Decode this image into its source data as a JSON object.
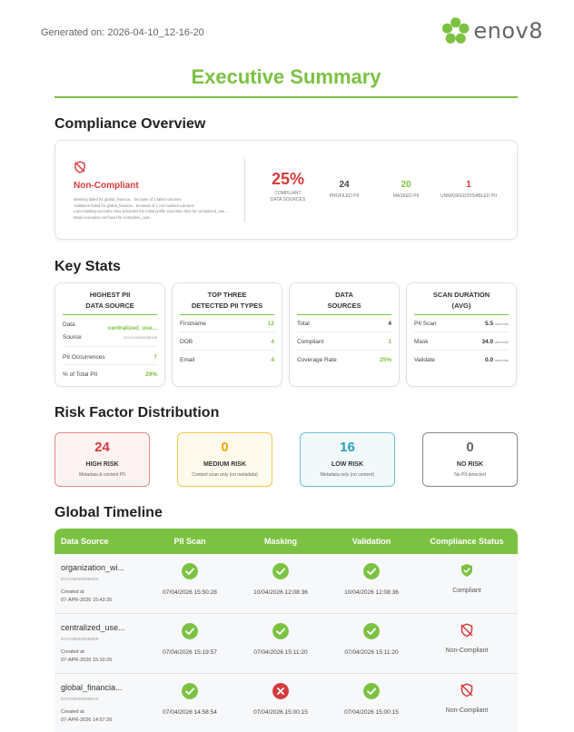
{
  "header": {
    "generated": "Generated on: 2026-04-10_12-16-20",
    "logo_text": "enov8",
    "logo_icon": "flower-logo-icon",
    "title": "Executive Summary"
  },
  "colors": {
    "brand_green": "#7cc242",
    "red": "#d63b3b",
    "amber": "#f2a900",
    "teal": "#2a9fb6",
    "grey": "#666666"
  },
  "compliance_overview": {
    "heading": "Compliance Overview",
    "status": "Non-Compliant",
    "status_icon": "shield-off-icon",
    "notes": [
      "Masking failed for global_financia... because of 1 failed columns",
      "Validation failed for global_financia... because of 1 not masked columns",
      "Last masking execution time precedes the initial profile execution time for centralized_use...",
      "Mask execution not found for enterprise_cust..."
    ],
    "compliant_pct": "25%",
    "compliant_pct_label_1": "COMPLIANT",
    "compliant_pct_label_2": "DATA SOURCES",
    "profiled_value": "24",
    "profiled_label": "PROFILED PII",
    "masked_value": "20",
    "masked_label": "MASKED PII",
    "unmasked_value": "1",
    "unmasked_label": "UNMASKED/DISABLED PII"
  },
  "key_stats": {
    "heading": "Key Stats",
    "highest": {
      "title_1": "HIGHEST PII",
      "title_2": "DATA SOURCE",
      "data_label": "Data",
      "source_label": "Source",
      "source_value": "centralized_use...",
      "source_id": "ECO-000000038336",
      "occ_label": "PII Occurrences",
      "occ_value": "7",
      "pct_label": "% of Total PII",
      "pct_value": "29%"
    },
    "top_three": {
      "title_1": "TOP THREE",
      "title_2": "DETECTED PII TYPES",
      "rows": [
        {
          "label": "Firstname",
          "value": "12"
        },
        {
          "label": "DOB",
          "value": "4"
        },
        {
          "label": "Email",
          "value": "4"
        }
      ]
    },
    "data_sources": {
      "title_1": "DATA",
      "title_2": "SOURCES",
      "rows": [
        {
          "label": "Total",
          "value": "4"
        },
        {
          "label": "Compliant",
          "value": "1"
        },
        {
          "label": "Coverage Rate",
          "value": "25%"
        }
      ]
    },
    "scan_duration": {
      "title_1": "SCAN DURATION",
      "title_2": "(AVG)",
      "unit": "seconds",
      "rows": [
        {
          "label": "PII Scan",
          "value": "5.5"
        },
        {
          "label": "Mask",
          "value": "34.0"
        },
        {
          "label": "Validate",
          "value": "0.0"
        }
      ]
    }
  },
  "risk": {
    "heading": "Risk Factor Distribution",
    "cards": [
      {
        "value": "24",
        "label": "HIGH RISK",
        "desc": "Metadata & content PII"
      },
      {
        "value": "0",
        "label": "MEDIUM RISK",
        "desc": "Content scan only (no metadata)"
      },
      {
        "value": "16",
        "label": "LOW RISK",
        "desc": "Metadata only (no content)"
      },
      {
        "value": "0",
        "label": "NO RISK",
        "desc": "No PII detected"
      }
    ]
  },
  "timeline": {
    "heading": "Global Timeline",
    "columns": [
      "Data Source",
      "PII Scan",
      "Masking",
      "Validation",
      "Compliance Status"
    ],
    "rows": [
      {
        "name": "organization_wi...",
        "id": "ECO-000000038424",
        "created_label": "Created at",
        "created": "07-APR-2026 15:43:35",
        "pii_scan": "07/04/2026 15:50:28",
        "masking": "10/04/2026 12:08:36",
        "validation": "10/04/2026 12:08:36",
        "status": "Compliant"
      },
      {
        "name": "centralized_use...",
        "id": "ECO-000000038336",
        "created_label": "Created at",
        "created": "07-APR-2026 15:10:26",
        "pii_scan": "07/04/2026 15:19:57",
        "masking": "07/04/2026 15:11:20",
        "validation": "07/04/2026 15:11:20",
        "status": "Non-Compliant"
      },
      {
        "name": "global_financia...",
        "id": "ECO-000000038173",
        "created_label": "Created at",
        "created": "07-APR-2026 14:57:26",
        "pii_scan": "07/04/2026 14:58:54",
        "masking": "07/04/2026 15:00:15",
        "validation": "07/04/2026 15:00:15",
        "status": "Non-Compliant"
      }
    ]
  }
}
